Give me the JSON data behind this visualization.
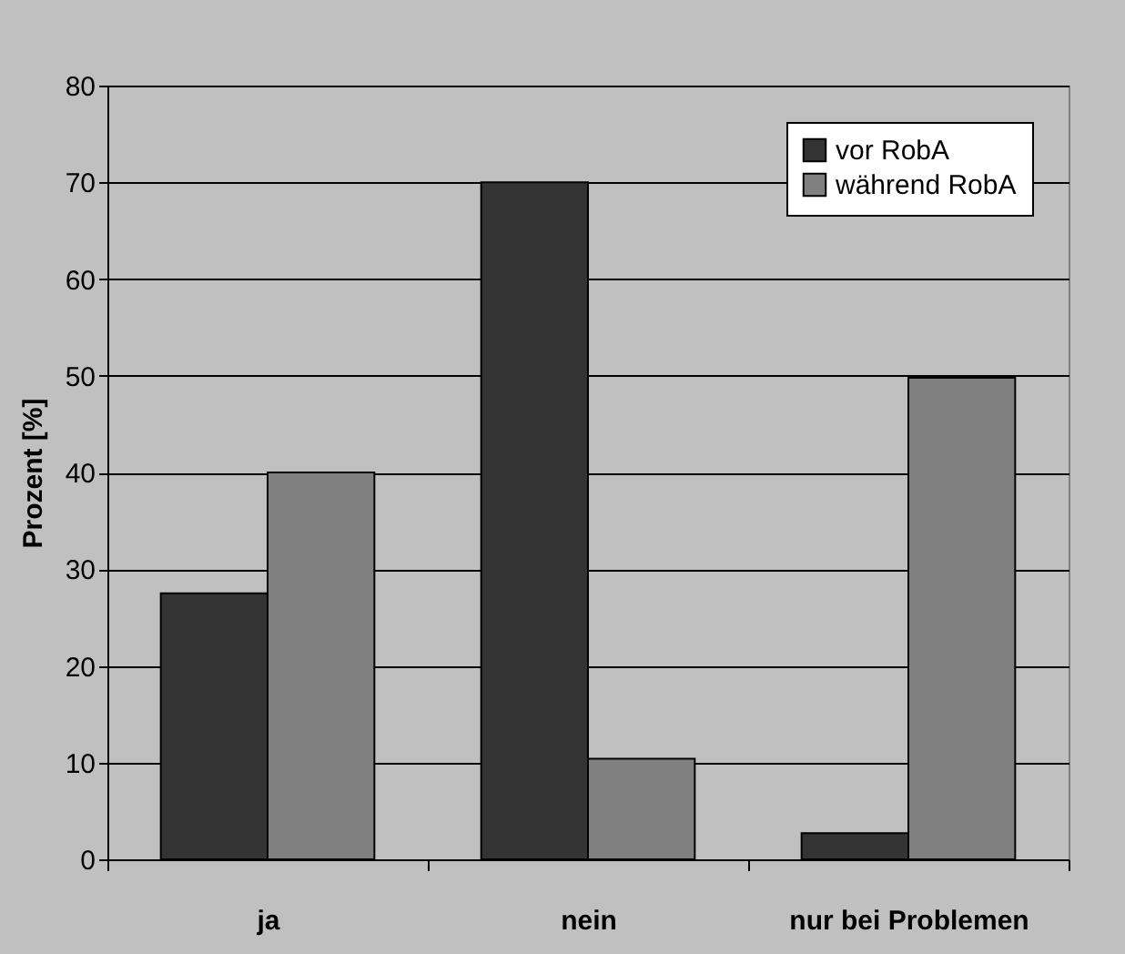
{
  "chart_data": {
    "type": "bar",
    "ylabel": "Prozent [%]",
    "categories": [
      "ja",
      "nein",
      "nur bei Problemen"
    ],
    "series": [
      {
        "name": "vor RobA",
        "color": "#333333",
        "values": [
          27.5,
          70,
          2.7
        ]
      },
      {
        "name": "während RobA",
        "color": "#808080",
        "values": [
          40,
          10.4,
          49.8
        ]
      }
    ],
    "ylim": [
      0,
      80
    ],
    "yticks": [
      0,
      10,
      20,
      30,
      40,
      50,
      60,
      70,
      80
    ],
    "grid": "y",
    "legend": "top right"
  }
}
